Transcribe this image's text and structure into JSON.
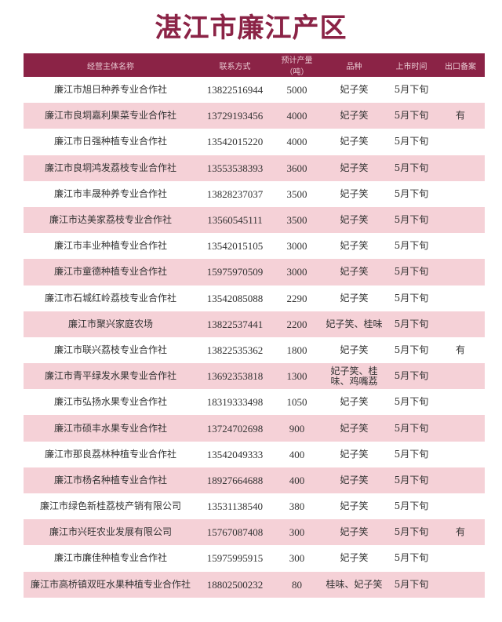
{
  "title": "湛江市廉江产区",
  "colors": {
    "header": "#8b2346",
    "stripe": "#f5d1d7"
  },
  "columns": [
    "经营主体名称",
    "联系方式",
    "预计产量（吨）",
    "品种",
    "上市时间",
    "出口备案"
  ],
  "rows": [
    [
      "廉江市旭日种养专业合作社",
      "13822516944",
      "5000",
      "妃子笑",
      "5月下旬",
      ""
    ],
    [
      "廉江市良垌嘉利果菜专业合作社",
      "13729193456",
      "4000",
      "妃子笑",
      "5月下旬",
      "有"
    ],
    [
      "廉江市日强种植专业合作社",
      "13542015220",
      "4000",
      "妃子笑",
      "5月下旬",
      ""
    ],
    [
      "廉江市良垌鸿发荔枝专业合作社",
      "13553538393",
      "3600",
      "妃子笑",
      "5月下旬",
      ""
    ],
    [
      "廉江市丰晟种养专业合作社",
      "13828237037",
      "3500",
      "妃子笑",
      "5月下旬",
      ""
    ],
    [
      "廉江市达美家荔枝专业合作社",
      "13560545111",
      "3500",
      "妃子笑",
      "5月下旬",
      ""
    ],
    [
      "廉江市丰业种植专业合作社",
      "13542015105",
      "3000",
      "妃子笑",
      "5月下旬",
      ""
    ],
    [
      "廉江市童德种植专业合作社",
      "15975970509",
      "3000",
      "妃子笑",
      "5月下旬",
      ""
    ],
    [
      "廉江市石城红岭荔枝专业合作社",
      "13542085088",
      "2290",
      "妃子笑",
      "5月下旬",
      ""
    ],
    [
      "廉江市聚兴家庭农场",
      "13822537441",
      "2200",
      "妃子笑、桂味",
      "5月下旬",
      ""
    ],
    [
      "廉江市联兴荔枝专业合作社",
      "13822535362",
      "1800",
      "妃子笑",
      "5月下旬",
      "有"
    ],
    [
      "廉江市青平绿发水果专业合作社",
      "13692353818",
      "1300",
      "妃子笑、桂味、鸡嘴荔",
      "5月下旬",
      ""
    ],
    [
      "廉江市弘扬水果专业合作社",
      "18319333498",
      "1050",
      "妃子笑",
      "5月下旬",
      ""
    ],
    [
      "廉江市硕丰水果专业合作社",
      "13724702698",
      "900",
      "妃子笑",
      "5月下旬",
      ""
    ],
    [
      "廉江市那良荔林种植专业合作社",
      "13542049333",
      "400",
      "妃子笑",
      "5月下旬",
      ""
    ],
    [
      "廉江市杨名种植专业合作社",
      "18927664688",
      "400",
      "妃子笑",
      "5月下旬",
      ""
    ],
    [
      "廉江市绿色新桂荔枝产销有限公司",
      "13531138540",
      "380",
      "妃子笑",
      "5月下旬",
      ""
    ],
    [
      "廉江市兴旺农业发展有限公司",
      "15767087408",
      "300",
      "妃子笑",
      "5月下旬",
      "有"
    ],
    [
      "廉江市廉佳种植专业合作社",
      "15975995915",
      "300",
      "妃子笑",
      "5月下旬",
      ""
    ],
    [
      "廉江市高桥镇双旺水果种植专业合作社",
      "18802500232",
      "80",
      "桂味、妃子笑",
      "5月下旬",
      ""
    ]
  ]
}
